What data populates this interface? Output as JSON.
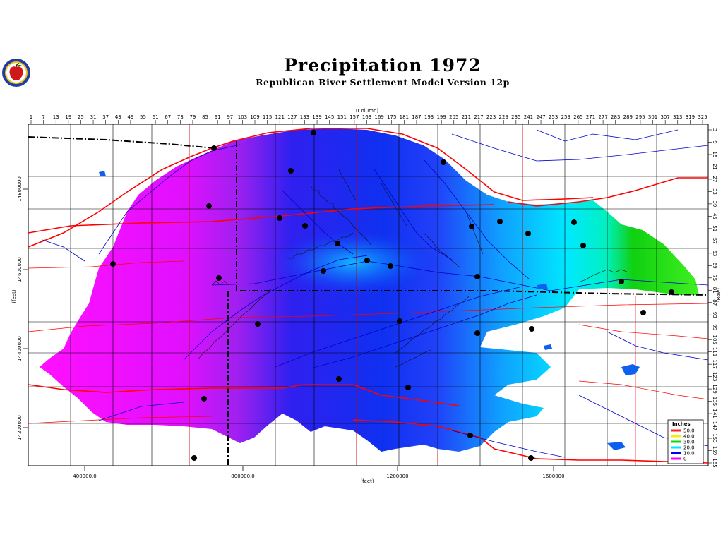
{
  "header": {
    "title": "Precipitation  1972",
    "subtitle": "Republican River Settlement Model Version 12p"
  },
  "logo": {
    "icon": "apple-seal-icon",
    "colors": [
      "#1e3fa0",
      "#f0c020",
      "#d01818"
    ]
  },
  "axes": {
    "top_title": "(Column)",
    "bottom_title": "(feet)",
    "left_title": "(feet)",
    "right_title": "(Row)",
    "columns": [
      "1",
      "7",
      "13",
      "19",
      "25",
      "31",
      "37",
      "43",
      "49",
      "55",
      "61",
      "67",
      "73",
      "79",
      "85",
      "91",
      "97",
      "103",
      "109",
      "115",
      "121",
      "127",
      "133",
      "139",
      "145",
      "151",
      "157",
      "163",
      "169",
      "175",
      "181",
      "187",
      "193",
      "199",
      "205",
      "211",
      "217",
      "223",
      "229",
      "235",
      "241",
      "247",
      "253",
      "259",
      "265",
      "271",
      "277",
      "283",
      "289",
      "295",
      "301",
      "307",
      "313",
      "319",
      "325"
    ],
    "rows": [
      "3",
      "9",
      "15",
      "21",
      "27",
      "33",
      "39",
      "45",
      "51",
      "57",
      "63",
      "69",
      "75",
      "81",
      "87",
      "93",
      "99",
      "105",
      "111",
      "117",
      "123",
      "129",
      "135",
      "141",
      "147",
      "153",
      "159",
      "165"
    ],
    "x_labels": [
      "400000.0",
      "800000.0",
      "1200000",
      "1600000"
    ],
    "y_labels": [
      "14800000",
      "14600000",
      "14400000",
      "14200000"
    ]
  },
  "legend": {
    "title": "Inches",
    "items": [
      {
        "label": "50.0",
        "color": "#ff2020"
      },
      {
        "label": "40.0",
        "color": "#f5f000"
      },
      {
        "label": "30.0",
        "color": "#00e000"
      },
      {
        "label": "20.0",
        "color": "#00e8ff"
      },
      {
        "label": "10.0",
        "color": "#0000ff"
      },
      {
        "label": "0",
        "color": "#ff00ff"
      }
    ]
  },
  "colors": {
    "magenta": "#ff10ff",
    "violet": "#a020f0",
    "blue": "#1030f0",
    "cyan": "#00e8ff",
    "green": "#10d010",
    "roads": "#ff0000",
    "rivers": "#0000cc",
    "grid": "#000000"
  }
}
